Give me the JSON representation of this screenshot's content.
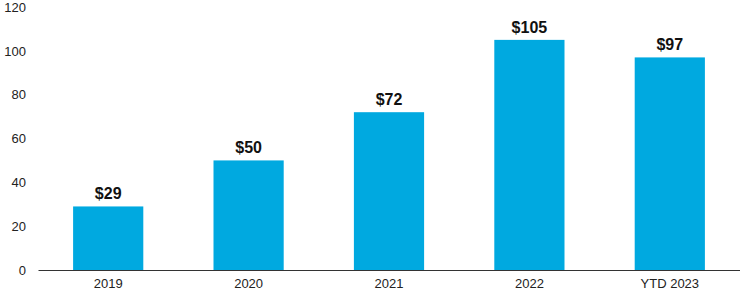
{
  "chart_data": {
    "type": "bar",
    "categories": [
      "2019",
      "2020",
      "2021",
      "2022",
      "YTD 2023"
    ],
    "values": [
      29,
      50,
      72,
      105,
      97
    ],
    "value_labels": [
      "$29",
      "$50",
      "$72",
      "$105",
      "$97"
    ],
    "color": "#00a9e0",
    "ylim": [
      0,
      120
    ],
    "yticks": [
      0,
      20,
      40,
      60,
      80,
      100,
      120
    ],
    "grid": false,
    "data_labels": true
  }
}
